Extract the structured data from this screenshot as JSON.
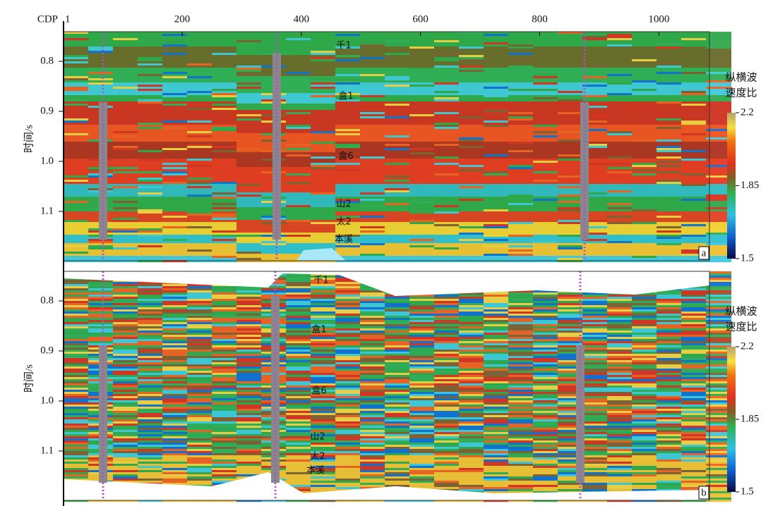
{
  "x_axis": {
    "label": "CDP",
    "ticks": [
      1,
      200,
      400,
      600,
      800,
      1000
    ]
  },
  "y_axis_label": "时间/s",
  "panels": [
    {
      "label": "a",
      "yticks": [
        0.8,
        0.9,
        {
          "value": 1,
          "label": "1.0"
        },
        1.1
      ],
      "horizons": [
        "千1",
        "盒1",
        "盒6",
        "山2",
        "太2",
        "本溪"
      ]
    },
    {
      "label": "b",
      "yticks": [
        0.8,
        0.9,
        {
          "value": 1,
          "label": "1.0"
        },
        1.1
      ],
      "horizons": [
        "千1",
        "盒1",
        "盒6",
        "山2",
        "太2",
        "本溪"
      ]
    }
  ],
  "colorbar": {
    "title": [
      "纵横波",
      "速度比"
    ],
    "ticks": [
      2.2,
      1.85,
      1.5
    ]
  }
}
